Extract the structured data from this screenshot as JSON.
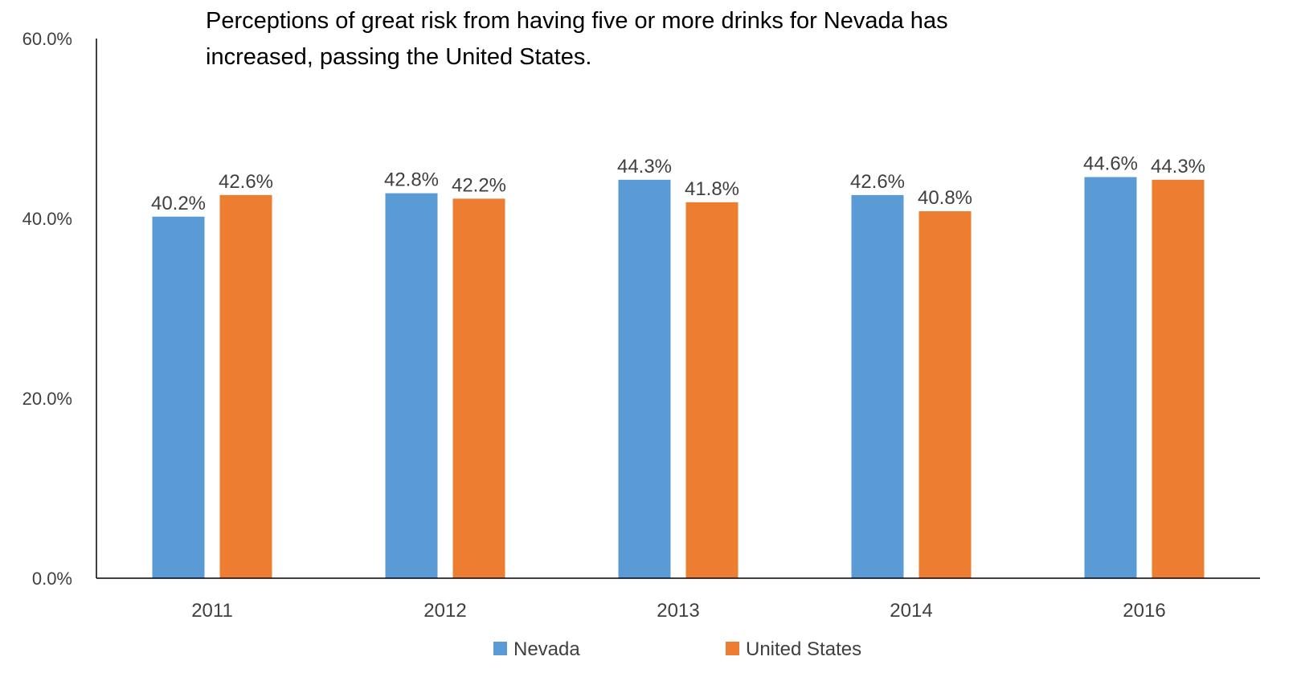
{
  "chart_data": {
    "type": "bar",
    "title": "Perceptions of great risk from having five or more drinks for Nevada has increased, passing the United States.",
    "title_lines": [
      "Perceptions of great risk from having five or more drinks for Nevada has",
      "increased, passing the United States."
    ],
    "categories": [
      "2011",
      "2012",
      "2013",
      "2014",
      "2016"
    ],
    "series": [
      {
        "name": "Nevada",
        "color": "#5B9BD5",
        "values": [
          40.2,
          42.8,
          44.3,
          42.6,
          44.6
        ],
        "labels": [
          "40.2%",
          "42.8%",
          "44.3%",
          "42.6%",
          "44.6%"
        ]
      },
      {
        "name": "United States",
        "color": "#ED7D31",
        "values": [
          42.6,
          42.2,
          41.8,
          40.8,
          44.3
        ],
        "labels": [
          "42.6%",
          "42.2%",
          "41.8%",
          "40.8%",
          "44.3%"
        ]
      }
    ],
    "ylim": [
      0,
      60
    ],
    "yticks": [
      0,
      20,
      40,
      60
    ],
    "ytick_labels": [
      "0.0%",
      "20.0%",
      "40.0%",
      "60.0%"
    ],
    "xlabel": "",
    "ylabel": "",
    "grid": false,
    "legend_position": "bottom"
  }
}
